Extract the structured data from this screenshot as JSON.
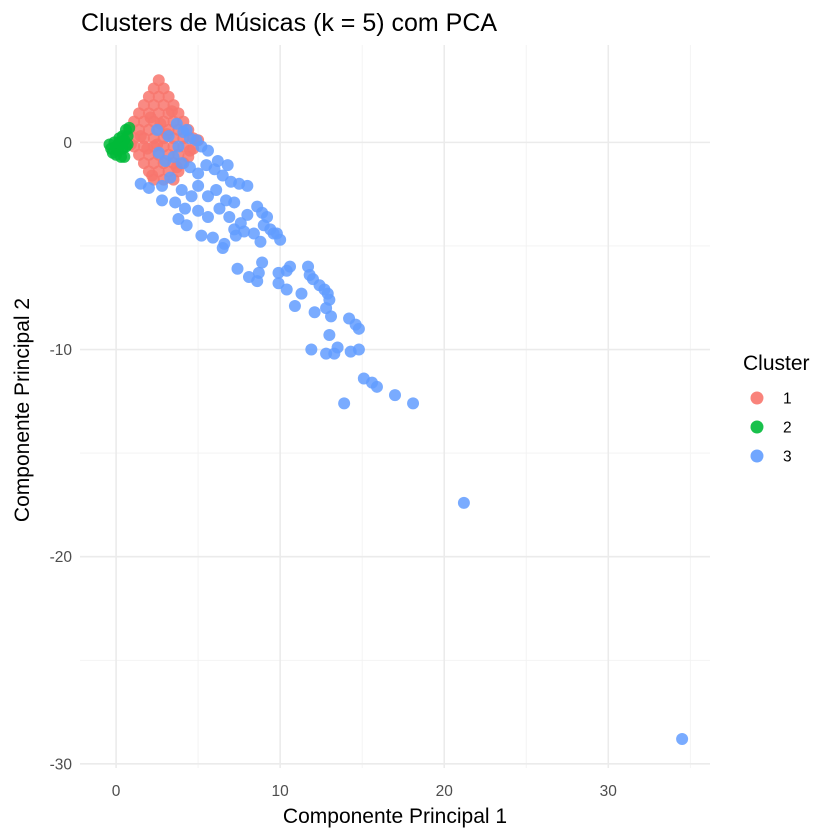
{
  "chart_data": {
    "type": "scatter",
    "title": "Clusters de Músicas (k = 5) com PCA",
    "xlabel": "Componente Principal 1",
    "ylabel": "Componente Principal 2",
    "xlim": [
      -2.2,
      36.2
    ],
    "ylim": [
      -30.2,
      4.7
    ],
    "xticks": [
      0,
      10,
      20,
      30
    ],
    "xtick_labels": [
      "0",
      "10",
      "20",
      "30"
    ],
    "yticks": [
      0,
      -10,
      -20,
      -30
    ],
    "ytick_labels": [
      "0",
      "-10",
      "-20",
      "-30"
    ],
    "grid": true,
    "legend": {
      "title": "Cluster",
      "position": "right"
    },
    "series": [
      {
        "name": "1",
        "color": "#F8766D",
        "points": [
          [
            2.6,
            3.0
          ],
          [
            2.3,
            2.6
          ],
          [
            2.9,
            2.6
          ],
          [
            2.0,
            2.2
          ],
          [
            2.6,
            2.2
          ],
          [
            3.2,
            2.2
          ],
          [
            1.7,
            1.8
          ],
          [
            2.3,
            1.8
          ],
          [
            2.9,
            1.8
          ],
          [
            3.5,
            1.8
          ],
          [
            1.4,
            1.4
          ],
          [
            2.0,
            1.4
          ],
          [
            2.6,
            1.4
          ],
          [
            3.2,
            1.4
          ],
          [
            3.8,
            1.4
          ],
          [
            1.1,
            1.0
          ],
          [
            1.7,
            1.0
          ],
          [
            2.3,
            1.0
          ],
          [
            2.9,
            1.0
          ],
          [
            3.5,
            1.0
          ],
          [
            4.1,
            1.0
          ],
          [
            0.8,
            0.6
          ],
          [
            1.4,
            0.6
          ],
          [
            2.0,
            0.6
          ],
          [
            2.6,
            0.6
          ],
          [
            3.2,
            0.6
          ],
          [
            3.8,
            0.6
          ],
          [
            4.4,
            0.6
          ],
          [
            1.1,
            0.2
          ],
          [
            1.7,
            0.2
          ],
          [
            2.3,
            0.2
          ],
          [
            2.9,
            0.2
          ],
          [
            3.5,
            0.2
          ],
          [
            4.1,
            0.2
          ],
          [
            4.7,
            0.2
          ],
          [
            1.1,
            -0.2
          ],
          [
            1.7,
            -0.2
          ],
          [
            2.3,
            -0.2
          ],
          [
            2.9,
            -0.2
          ],
          [
            3.5,
            -0.2
          ],
          [
            4.1,
            -0.2
          ],
          [
            4.7,
            -0.3
          ],
          [
            1.4,
            -0.6
          ],
          [
            2.0,
            -0.6
          ],
          [
            2.6,
            -0.6
          ],
          [
            3.2,
            -0.6
          ],
          [
            3.8,
            -0.6
          ],
          [
            4.4,
            -0.7
          ],
          [
            1.7,
            -1.0
          ],
          [
            2.3,
            -1.0
          ],
          [
            2.9,
            -1.0
          ],
          [
            3.5,
            -1.0
          ],
          [
            4.1,
            -1.0
          ],
          [
            2.0,
            -1.4
          ],
          [
            2.6,
            -1.4
          ],
          [
            3.2,
            -1.4
          ],
          [
            3.8,
            -1.4
          ],
          [
            2.3,
            -1.8
          ],
          [
            2.9,
            -1.8
          ],
          [
            3.5,
            -1.8
          ],
          [
            1.9,
            -0.3
          ],
          [
            2.5,
            -0.1
          ],
          [
            3.1,
            0.4
          ],
          [
            2.7,
            0.9
          ],
          [
            2.1,
            1.2
          ],
          [
            3.4,
            1.5
          ],
          [
            1.5,
            0.3
          ],
          [
            4.5,
            -0.4
          ],
          [
            3.7,
            -1.2
          ],
          [
            2.2,
            -1.6
          ],
          [
            0.9,
            -0.1
          ],
          [
            5.0,
            0.1
          ]
        ]
      },
      {
        "name": "2",
        "color": "#00BA38",
        "points": [
          [
            -0.3,
            -0.3
          ],
          [
            -0.4,
            -0.1
          ],
          [
            -0.2,
            -0.5
          ],
          [
            0.0,
            -0.2
          ],
          [
            0.2,
            0.0
          ],
          [
            0.1,
            -0.4
          ],
          [
            0.4,
            0.3
          ],
          [
            0.6,
            0.6
          ],
          [
            0.3,
            -0.1
          ],
          [
            0.5,
            0.1
          ],
          [
            0.7,
            0.3
          ],
          [
            0.2,
            0.2
          ],
          [
            -0.1,
            0.0
          ],
          [
            0.4,
            -0.3
          ],
          [
            0.8,
            0.7
          ],
          [
            0.6,
            -0.2
          ],
          [
            0.0,
            -0.6
          ],
          [
            0.3,
            -0.7
          ],
          [
            0.5,
            -0.7
          ],
          [
            0.7,
            -0.1
          ]
        ]
      },
      {
        "name": "3",
        "color": "#619CFF",
        "points": [
          [
            2.5,
            0.6
          ],
          [
            3.2,
            0.3
          ],
          [
            3.7,
            0.9
          ],
          [
            4.1,
            0.5
          ],
          [
            4.5,
            0.2
          ],
          [
            4.9,
            0.1
          ],
          [
            5.2,
            -0.2
          ],
          [
            2.6,
            -0.5
          ],
          [
            3.0,
            -0.9
          ],
          [
            3.5,
            -0.7
          ],
          [
            4.0,
            -1.0
          ],
          [
            4.5,
            -1.2
          ],
          [
            5.0,
            -1.5
          ],
          [
            5.5,
            -1.1
          ],
          [
            6.0,
            -1.3
          ],
          [
            6.5,
            -1.6
          ],
          [
            7.0,
            -1.9
          ],
          [
            7.5,
            -2.0
          ],
          [
            1.5,
            -2.0
          ],
          [
            2.0,
            -2.2
          ],
          [
            2.8,
            -2.1
          ],
          [
            3.3,
            -1.7
          ],
          [
            4.0,
            -2.3
          ],
          [
            4.6,
            -2.6
          ],
          [
            5.0,
            -2.1
          ],
          [
            5.6,
            -2.6
          ],
          [
            6.1,
            -2.3
          ],
          [
            6.7,
            -2.8
          ],
          [
            7.2,
            -2.9
          ],
          [
            8.0,
            -2.1
          ],
          [
            2.8,
            -2.8
          ],
          [
            3.6,
            -2.9
          ],
          [
            4.2,
            -3.2
          ],
          [
            5.0,
            -3.3
          ],
          [
            5.6,
            -3.6
          ],
          [
            6.3,
            -3.2
          ],
          [
            6.9,
            -3.6
          ],
          [
            7.6,
            -3.9
          ],
          [
            8.0,
            -3.5
          ],
          [
            8.6,
            -3.1
          ],
          [
            8.9,
            -3.4
          ],
          [
            9.2,
            -3.6
          ],
          [
            3.8,
            -3.7
          ],
          [
            4.3,
            -4.0
          ],
          [
            5.2,
            -4.5
          ],
          [
            5.9,
            -4.6
          ],
          [
            6.6,
            -4.9
          ],
          [
            7.3,
            -4.5
          ],
          [
            7.8,
            -4.3
          ],
          [
            8.4,
            -4.4
          ],
          [
            9.0,
            -4.0
          ],
          [
            9.4,
            -4.2
          ],
          [
            9.8,
            -4.4
          ],
          [
            10.0,
            -4.7
          ],
          [
            6.5,
            -5.1
          ],
          [
            7.2,
            -4.2
          ],
          [
            8.8,
            -4.8
          ],
          [
            9.6,
            -4.4
          ],
          [
            5.6,
            -0.4
          ],
          [
            6.2,
            -0.9
          ],
          [
            6.8,
            -1.1
          ],
          [
            4.3,
            0.6
          ],
          [
            3.8,
            -0.2
          ],
          [
            7.4,
            -6.1
          ],
          [
            8.1,
            -6.5
          ],
          [
            8.7,
            -6.3
          ],
          [
            8.9,
            -5.8
          ],
          [
            9.9,
            -6.3
          ],
          [
            10.6,
            -6.0
          ],
          [
            10.4,
            -6.2
          ],
          [
            11.7,
            -6.0
          ],
          [
            11.8,
            -6.4
          ],
          [
            12.0,
            -6.6
          ],
          [
            8.6,
            -6.7
          ],
          [
            9.9,
            -6.8
          ],
          [
            10.4,
            -7.1
          ],
          [
            11.3,
            -7.3
          ],
          [
            12.4,
            -6.9
          ],
          [
            12.7,
            -7.1
          ],
          [
            12.9,
            -7.3
          ],
          [
            13.0,
            -7.6
          ],
          [
            12.8,
            -8.0
          ],
          [
            13.1,
            -8.4
          ],
          [
            12.1,
            -8.2
          ],
          [
            10.9,
            -7.9
          ],
          [
            13.0,
            -9.3
          ],
          [
            14.2,
            -8.5
          ],
          [
            14.6,
            -8.8
          ],
          [
            14.8,
            -9.0
          ],
          [
            11.9,
            -10.0
          ],
          [
            12.8,
            -10.2
          ],
          [
            13.3,
            -10.2
          ],
          [
            13.5,
            -9.9
          ],
          [
            14.3,
            -10.1
          ],
          [
            14.8,
            -10.0
          ],
          [
            15.1,
            -11.4
          ],
          [
            15.6,
            -11.6
          ],
          [
            15.9,
            -11.8
          ],
          [
            13.9,
            -12.6
          ],
          [
            17.0,
            -12.2
          ],
          [
            18.1,
            -12.6
          ],
          [
            21.2,
            -17.4
          ],
          [
            34.5,
            -28.8
          ]
        ]
      }
    ]
  }
}
